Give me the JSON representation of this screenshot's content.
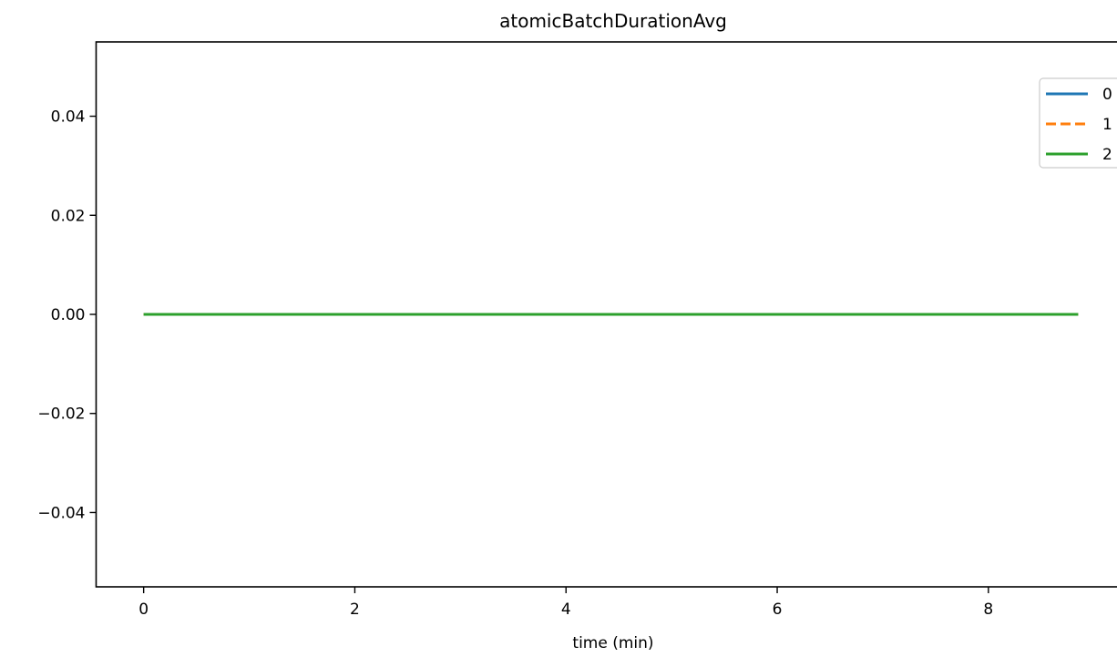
{
  "chart_data": {
    "type": "line",
    "title": "atomicBatchDurationAvg",
    "xlabel": "time (min)",
    "ylabel": "",
    "xlim": [
      -0.45,
      9.3
    ],
    "ylim": [
      -0.055,
      0.055
    ],
    "x_ticks": [
      0,
      2,
      4,
      6,
      8
    ],
    "x_tick_labels": [
      "0",
      "2",
      "4",
      "6",
      "8"
    ],
    "y_ticks": [
      0.04,
      0.02,
      0.0,
      -0.02,
      -0.04
    ],
    "y_tick_labels": [
      "0.04",
      "0.02",
      "0.00",
      "−0.02",
      "−0.04"
    ],
    "grid": false,
    "legend_position": "top-right",
    "series": [
      {
        "name": "0",
        "color": "#1f77b4",
        "dash": "solid",
        "x": [
          0,
          8.85
        ],
        "y": [
          0,
          0
        ]
      },
      {
        "name": "1",
        "color": "#ff7f0e",
        "dash": "dashed",
        "x": [
          0,
          8.85
        ],
        "y": [
          0,
          0
        ]
      },
      {
        "name": "2",
        "color": "#2ca02c",
        "dash": "solid",
        "x": [
          0,
          8.85
        ],
        "y": [
          0,
          0
        ]
      }
    ]
  }
}
